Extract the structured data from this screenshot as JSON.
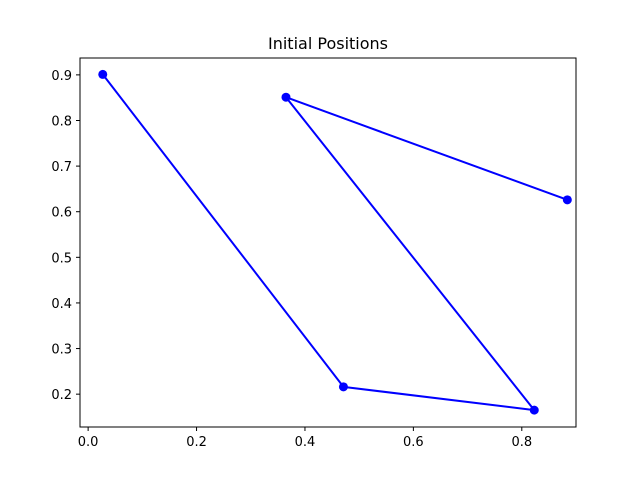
{
  "chart_data": {
    "type": "line",
    "title": "Initial Positions",
    "xlabel": "",
    "ylabel": "",
    "xlim": [
      -0.015,
      0.9
    ],
    "ylim": [
      0.128,
      0.937
    ],
    "x_ticks": [
      0.0,
      0.2,
      0.4,
      0.6,
      0.8
    ],
    "x_tick_labels": [
      "0.0",
      "0.2",
      "0.4",
      "0.6",
      "0.8"
    ],
    "y_ticks": [
      0.2,
      0.3,
      0.4,
      0.5,
      0.6,
      0.7,
      0.8,
      0.9
    ],
    "y_tick_labels": [
      "0.2",
      "0.3",
      "0.4",
      "0.5",
      "0.6",
      "0.7",
      "0.8",
      "0.9"
    ],
    "grid": false,
    "series": [
      {
        "color": "#0000ff",
        "marker": "circle",
        "x": [
          0.027,
          0.471,
          0.823,
          0.365,
          0.884
        ],
        "y": [
          0.901,
          0.216,
          0.165,
          0.851,
          0.626
        ]
      }
    ]
  }
}
